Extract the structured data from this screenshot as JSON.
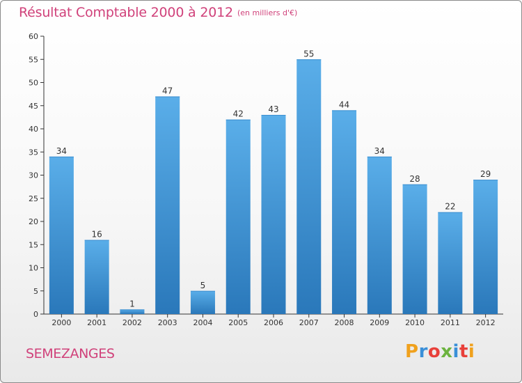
{
  "chart_data": {
    "type": "bar",
    "title": "Résultat Comptable 2000 à 2012",
    "subtitle": "(en milliers d'€)",
    "categories": [
      "2000",
      "2001",
      "2002",
      "2003",
      "2004",
      "2005",
      "2006",
      "2007",
      "2008",
      "2009",
      "2010",
      "2011",
      "2012"
    ],
    "values": [
      34,
      16,
      1,
      47,
      5,
      42,
      43,
      55,
      44,
      34,
      28,
      22,
      29
    ],
    "ylim": [
      0,
      60
    ],
    "yticks": [
      0,
      5,
      10,
      15,
      20,
      25,
      30,
      35,
      40,
      45,
      50,
      55,
      60
    ],
    "xlabel": "",
    "ylabel": "",
    "grid": false
  },
  "footer": {
    "town": "SEMEZANGES",
    "logo_letters": [
      "P",
      "r",
      "o",
      "x",
      "i",
      "t",
      "i"
    ],
    "logo_colors": [
      "#f0a11d",
      "#3a8fd8",
      "#e8403a",
      "#6cb33f",
      "#3a8fd8",
      "#e8403a",
      "#f0a11d"
    ]
  },
  "colors": {
    "bar_top": "#5aaee9",
    "bar_bottom": "#2a78ba",
    "accent": "#d0417a",
    "axis": "#333333"
  }
}
